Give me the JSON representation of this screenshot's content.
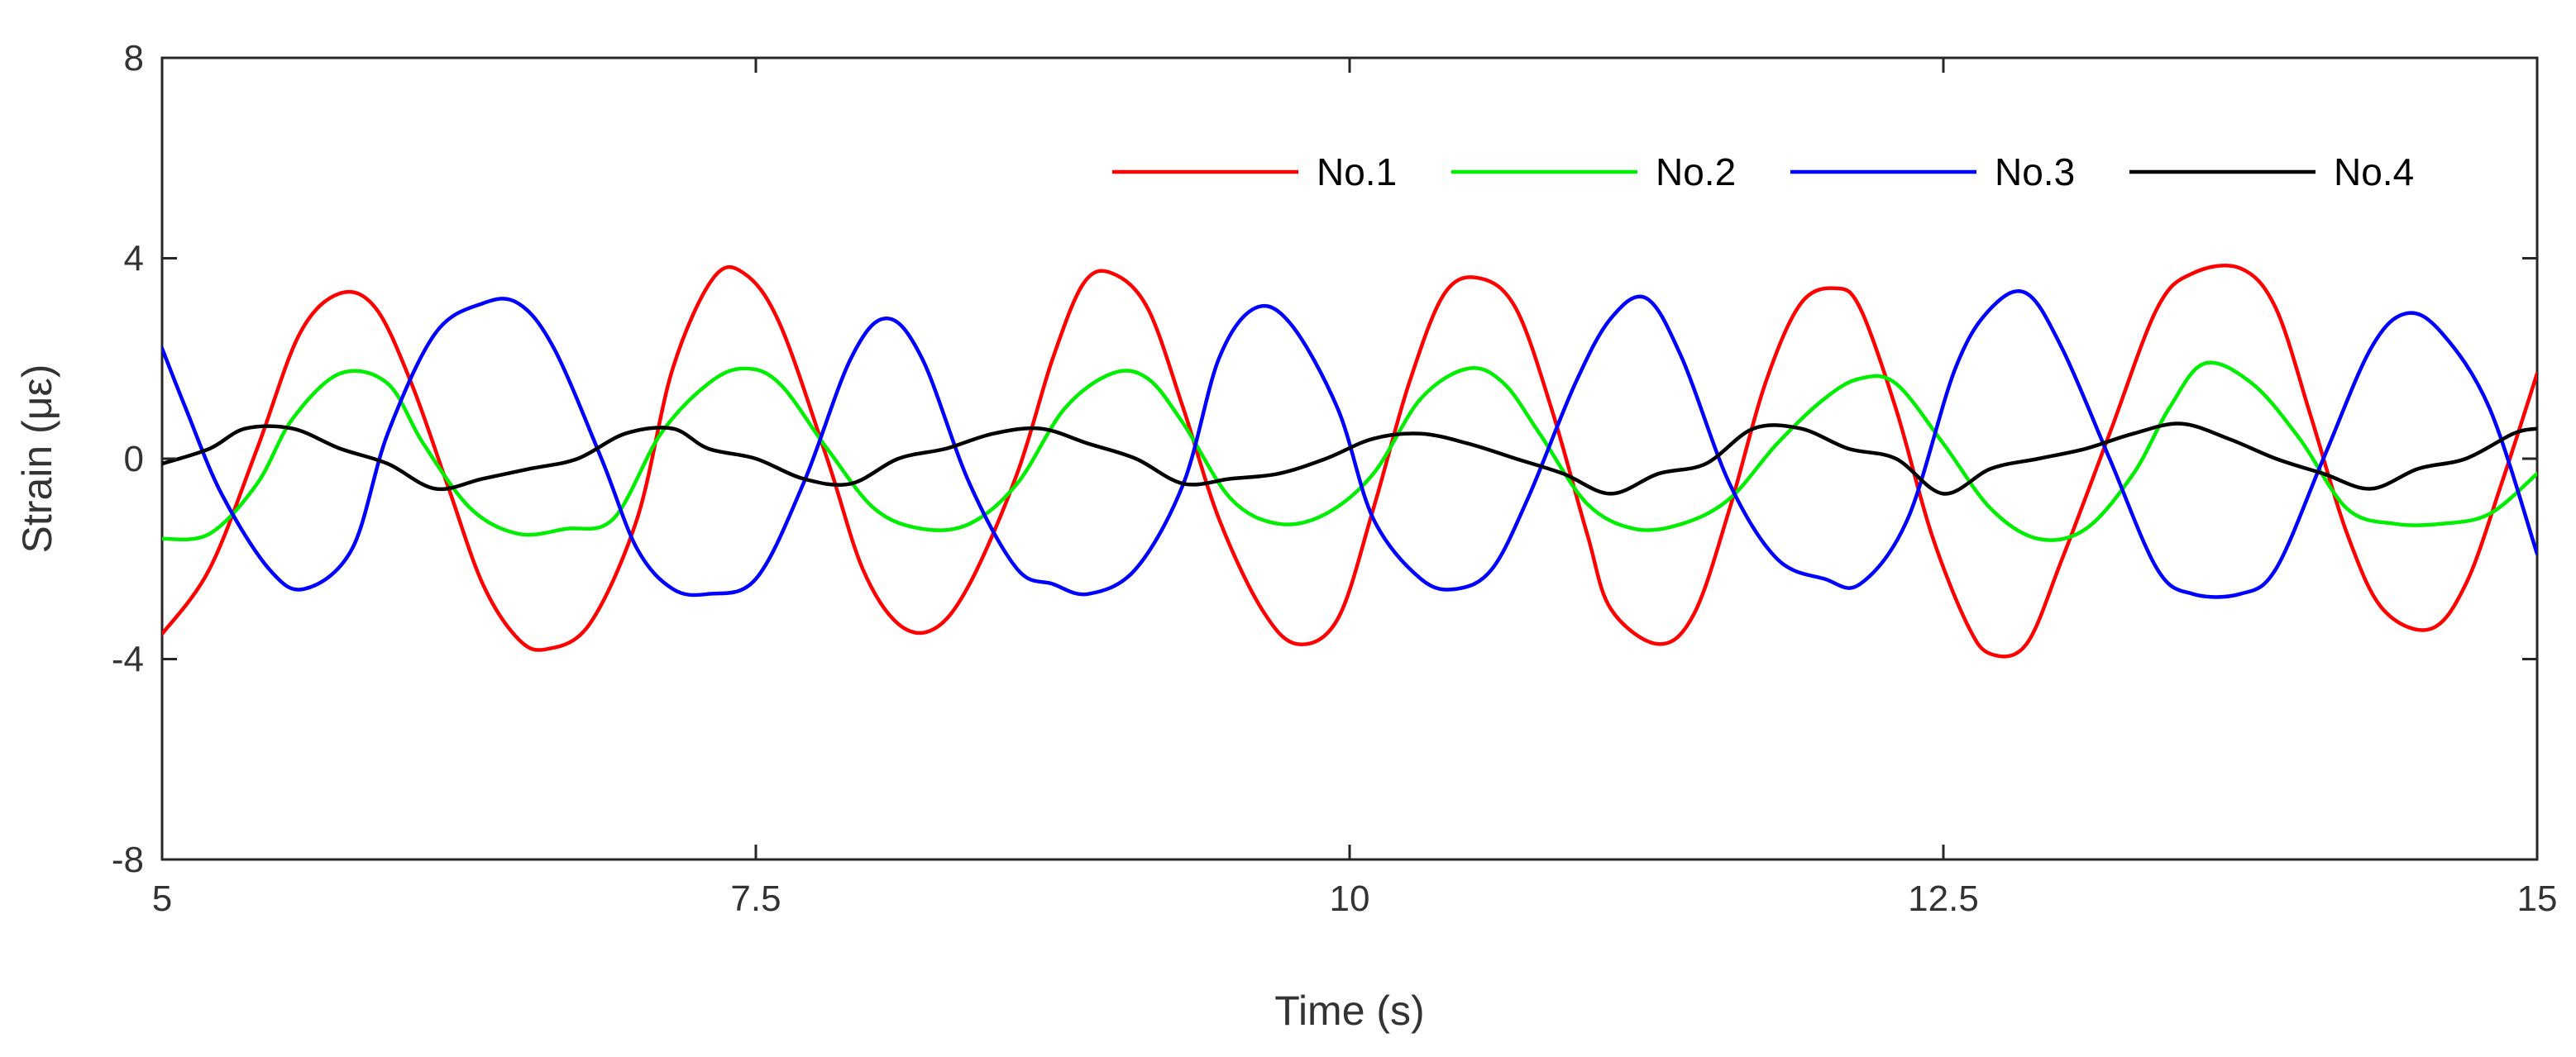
{
  "chart_data": {
    "type": "line",
    "xlabel": "Time (s)",
    "ylabel": "Strain (με)",
    "xlim": [
      5,
      15
    ],
    "ylim": [
      -8,
      8
    ],
    "x_ticks": [
      5,
      7.5,
      10,
      12.5,
      15
    ],
    "x_tick_labels": [
      "5",
      "7.5",
      "10",
      "12.5",
      "15"
    ],
    "y_ticks": [
      -8,
      -4,
      0,
      4,
      8
    ],
    "y_tick_labels": [
      "-8",
      "-4",
      "0",
      "4",
      "8"
    ],
    "grid": false,
    "legend_position": "top-right",
    "series": [
      {
        "name": "No.1",
        "color": "#ff0000",
        "x": [
          5,
          5.2,
          5.4,
          5.58,
          5.75,
          5.9,
          6.05,
          6.2,
          6.35,
          6.5,
          6.62,
          6.8,
          7.0,
          7.15,
          7.32,
          7.45,
          7.6,
          7.8,
          7.95,
          8.1,
          8.25,
          8.4,
          8.6,
          8.75,
          8.88,
          9.0,
          9.15,
          9.3,
          9.45,
          9.63,
          9.78,
          9.95,
          10.1,
          10.25,
          10.4,
          10.55,
          10.7,
          10.85,
          11.0,
          11.1,
          11.3,
          11.45,
          11.6,
          11.75,
          11.9,
          12.05,
          12.15,
          12.3,
          12.45,
          12.6,
          12.7,
          12.85,
          13.0,
          13.2,
          13.4,
          13.55,
          13.75,
          13.9,
          14.05,
          14.2,
          14.35,
          14.55,
          14.7,
          14.85,
          15.0
        ],
        "values": [
          -3.5,
          -2.2,
          0.2,
          2.5,
          3.3,
          3.0,
          1.5,
          -0.5,
          -2.5,
          -3.6,
          -3.8,
          -3.3,
          -1.2,
          1.8,
          3.6,
          3.7,
          2.7,
          0.0,
          -2.2,
          -3.3,
          -3.4,
          -2.5,
          -0.3,
          2.0,
          3.5,
          3.7,
          3.0,
          1.0,
          -1.2,
          -3.0,
          -3.7,
          -3.2,
          -1.0,
          1.5,
          3.3,
          3.6,
          3.0,
          1.0,
          -1.5,
          -3.0,
          -3.7,
          -3.1,
          -1.0,
          1.5,
          3.1,
          3.4,
          3.0,
          1.0,
          -1.5,
          -3.3,
          -3.9,
          -3.7,
          -2.0,
          0.5,
          3.0,
          3.7,
          3.8,
          3.0,
          0.8,
          -1.5,
          -3.0,
          -3.4,
          -2.5,
          -0.5,
          1.7
        ]
      },
      {
        "name": "No.2",
        "color": "#00ee00",
        "x": [
          5,
          5.2,
          5.4,
          5.55,
          5.75,
          5.95,
          6.1,
          6.3,
          6.5,
          6.7,
          6.9,
          7.1,
          7.3,
          7.45,
          7.6,
          7.8,
          8.0,
          8.2,
          8.4,
          8.6,
          8.8,
          9.0,
          9.15,
          9.3,
          9.5,
          9.7,
          9.9,
          10.1,
          10.3,
          10.5,
          10.65,
          10.8,
          11.0,
          11.2,
          11.4,
          11.6,
          11.8,
          12.0,
          12.15,
          12.3,
          12.5,
          12.7,
          12.9,
          13.1,
          13.3,
          13.45,
          13.6,
          13.8,
          14.0,
          14.2,
          14.4,
          14.6,
          14.8,
          15.0
        ],
        "values": [
          -1.6,
          -1.5,
          -0.5,
          0.8,
          1.7,
          1.5,
          0.3,
          -1.0,
          -1.5,
          -1.4,
          -1.2,
          0.5,
          1.5,
          1.8,
          1.5,
          0.2,
          -1.0,
          -1.4,
          -1.3,
          -0.5,
          1.0,
          1.7,
          1.6,
          0.7,
          -0.8,
          -1.3,
          -1.1,
          -0.3,
          1.2,
          1.8,
          1.5,
          0.5,
          -0.9,
          -1.4,
          -1.3,
          -0.8,
          0.3,
          1.2,
          1.6,
          1.5,
          0.3,
          -1.0,
          -1.6,
          -1.4,
          -0.3,
          1.0,
          1.9,
          1.5,
          0.4,
          -1.0,
          -1.3,
          -1.3,
          -1.1,
          -0.3
        ]
      },
      {
        "name": "No.3",
        "color": "#0000ff",
        "x": [
          5,
          5.1,
          5.25,
          5.45,
          5.6,
          5.8,
          5.95,
          6.15,
          6.35,
          6.5,
          6.65,
          6.85,
          7.0,
          7.15,
          7.3,
          7.5,
          7.7,
          7.9,
          8.05,
          8.2,
          8.4,
          8.6,
          8.75,
          8.9,
          9.1,
          9.3,
          9.45,
          9.6,
          9.75,
          9.95,
          10.1,
          10.3,
          10.45,
          10.6,
          10.75,
          10.95,
          11.1,
          11.25,
          11.4,
          11.6,
          11.8,
          12.0,
          12.15,
          12.35,
          12.55,
          12.7,
          12.85,
          13.0,
          13.2,
          13.4,
          13.55,
          13.75,
          13.9,
          14.1,
          14.3,
          14.45,
          14.6,
          14.8,
          15.0
        ],
        "values": [
          2.2,
          1.0,
          -0.7,
          -2.2,
          -2.6,
          -1.8,
          0.5,
          2.5,
          3.1,
          3.1,
          2.2,
          0.0,
          -1.8,
          -2.6,
          -2.7,
          -2.4,
          -0.5,
          2.0,
          2.8,
          2.0,
          -0.5,
          -2.2,
          -2.5,
          -2.7,
          -2.2,
          -0.5,
          2.0,
          3.0,
          2.7,
          1.0,
          -1.2,
          -2.4,
          -2.6,
          -2.2,
          -0.8,
          1.5,
          2.8,
          3.2,
          2.0,
          -0.5,
          -2.0,
          -2.4,
          -2.5,
          -1.2,
          1.8,
          3.0,
          3.3,
          2.2,
          0.0,
          -2.2,
          -2.7,
          -2.7,
          -2.2,
          0.0,
          2.2,
          2.9,
          2.5,
          1.0,
          -1.9
        ]
      },
      {
        "name": "No.4",
        "color": "#000000",
        "x": [
          5,
          5.2,
          5.35,
          5.55,
          5.75,
          5.95,
          6.15,
          6.35,
          6.55,
          6.75,
          6.95,
          7.15,
          7.3,
          7.5,
          7.7,
          7.9,
          8.1,
          8.3,
          8.5,
          8.7,
          8.9,
          9.1,
          9.3,
          9.5,
          9.7,
          9.9,
          10.1,
          10.3,
          10.5,
          10.7,
          10.9,
          11.1,
          11.3,
          11.5,
          11.7,
          11.9,
          12.1,
          12.3,
          12.5,
          12.7,
          12.9,
          13.1,
          13.3,
          13.5,
          13.7,
          13.9,
          14.1,
          14.3,
          14.5,
          14.7,
          14.9,
          15.0
        ],
        "values": [
          -0.1,
          0.2,
          0.6,
          0.6,
          0.2,
          -0.1,
          -0.6,
          -0.4,
          -0.2,
          0.0,
          0.5,
          0.6,
          0.2,
          0.0,
          -0.4,
          -0.5,
          0.0,
          0.2,
          0.5,
          0.6,
          0.3,
          0.0,
          -0.5,
          -0.4,
          -0.3,
          0.0,
          0.4,
          0.5,
          0.3,
          0.0,
          -0.3,
          -0.7,
          -0.3,
          -0.1,
          0.6,
          0.6,
          0.2,
          0.0,
          -0.7,
          -0.2,
          0.0,
          0.2,
          0.5,
          0.7,
          0.4,
          0.0,
          -0.3,
          -0.6,
          -0.2,
          0.0,
          0.5,
          0.6
        ]
      }
    ]
  }
}
